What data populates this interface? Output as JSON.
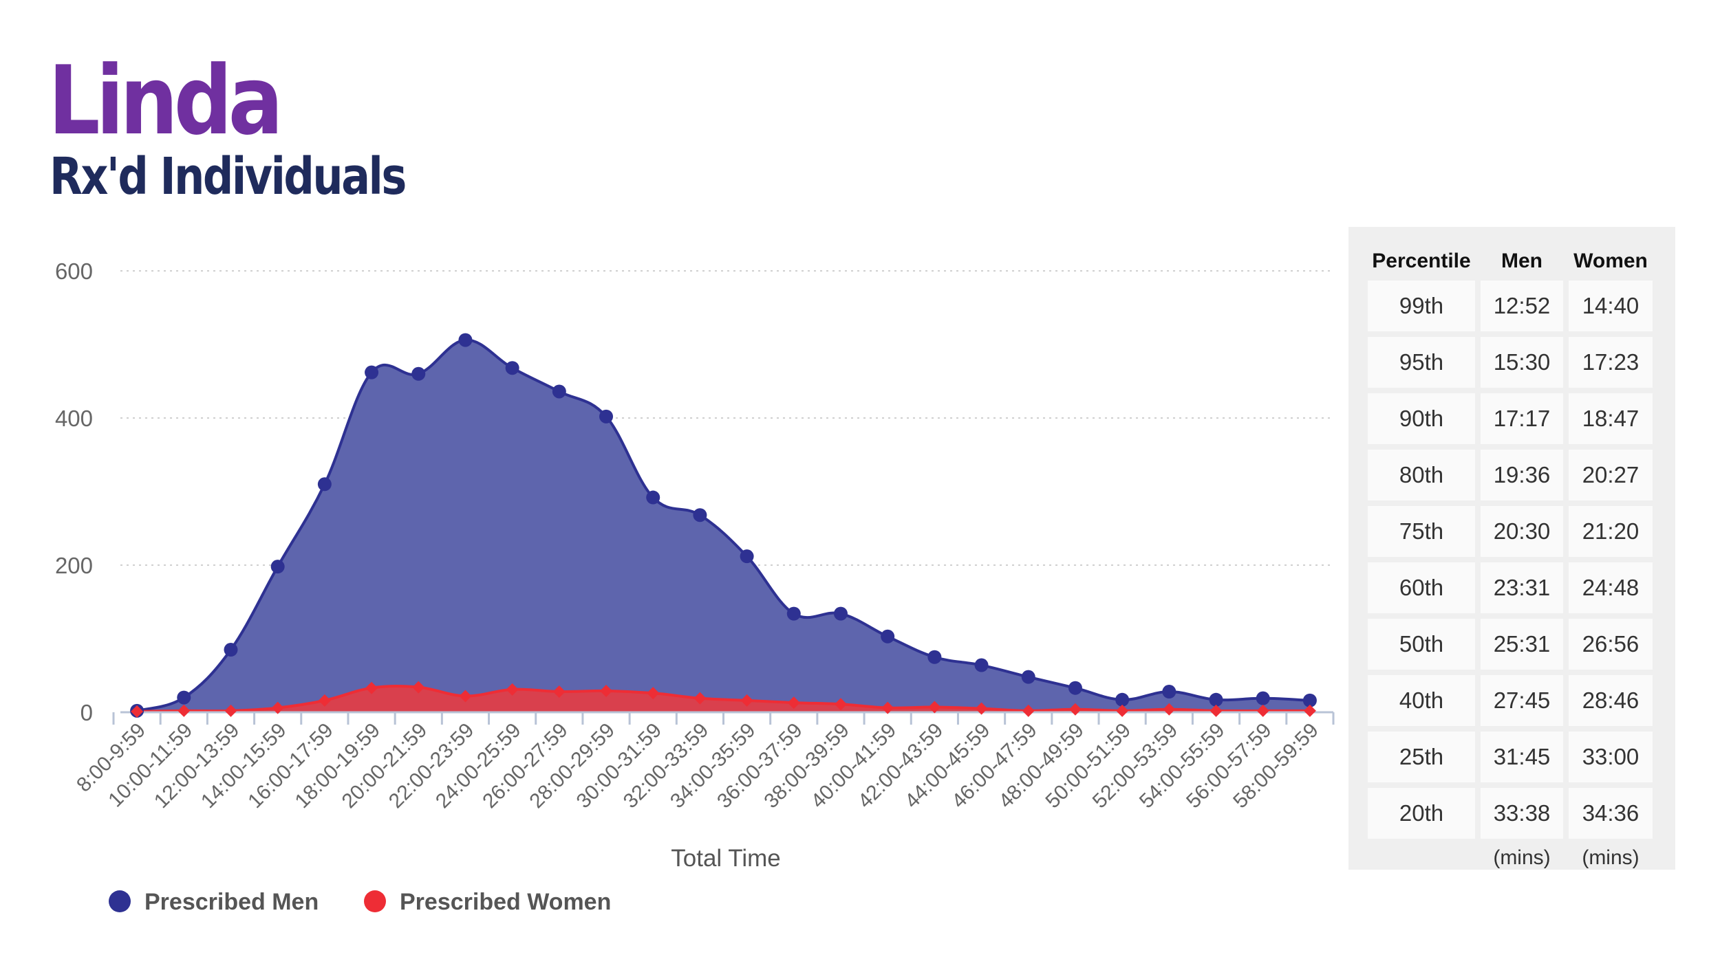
{
  "header": {
    "title": "Linda",
    "subtitle": "Rx'd Individuals"
  },
  "chart_data": {
    "type": "area",
    "categories": [
      "8:00-9:59",
      "10:00-11:59",
      "12:00-13:59",
      "14:00-15:59",
      "16:00-17:59",
      "18:00-19:59",
      "20:00-21:59",
      "22:00-23:59",
      "24:00-25:59",
      "26:00-27:59",
      "28:00-29:59",
      "30:00-31:59",
      "32:00-33:59",
      "34:00-35:59",
      "36:00-37:59",
      "38:00-39:59",
      "40:00-41:59",
      "42:00-43:59",
      "44:00-45:59",
      "46:00-47:59",
      "48:00-49:59",
      "50:00-51:59",
      "52:00-53:59",
      "54:00-55:59",
      "56:00-57:59",
      "58:00-59:59"
    ],
    "x_offsets": [
      0,
      2,
      4,
      6,
      8,
      10,
      12,
      14,
      16,
      18,
      20,
      22,
      24,
      26,
      28,
      30,
      32,
      34,
      36,
      38,
      40,
      42,
      44,
      46,
      48,
      50,
      52,
      54,
      56,
      58,
      60,
      62,
      64,
      66,
      68,
      70,
      72,
      74,
      76,
      78,
      80,
      82,
      84,
      86,
      88,
      90,
      92,
      94,
      96,
      98,
      100
    ],
    "point_offsets": [
      1,
      3,
      5,
      7,
      9,
      11,
      13,
      15,
      17,
      19,
      21,
      23,
      25,
      27,
      29,
      31,
      33,
      35,
      37,
      39,
      41,
      43,
      45,
      47,
      49,
      51,
      53,
      55,
      57,
      59,
      61,
      63,
      65,
      67,
      69,
      71,
      73,
      75,
      77,
      79,
      81,
      83,
      85,
      87,
      89,
      91,
      93,
      95,
      97,
      99
    ],
    "series": [
      {
        "name": "Prescribed Men",
        "color": "#2e3192",
        "fill": "#5e65ad",
        "values": [
          2,
          20,
          85,
          198,
          310,
          462,
          460,
          506,
          468,
          436,
          402,
          292,
          268,
          212,
          134,
          134,
          103,
          75,
          64,
          48,
          33,
          17,
          28,
          17,
          19,
          16
        ]
      },
      {
        "name": "Prescribed Women",
        "color": "#ee2d35",
        "fill": "#d9404d",
        "values": [
          1,
          2,
          2,
          6,
          16,
          33,
          34,
          22,
          31,
          28,
          29,
          26,
          19,
          16,
          13,
          11,
          6,
          7,
          5,
          2,
          4,
          2,
          4,
          2,
          2,
          2
        ]
      }
    ],
    "xlabel": "Total Time",
    "ylabel": "",
    "ylim": [
      0,
      600
    ],
    "yticks": [
      0,
      200,
      400,
      600
    ],
    "grid": true,
    "legend_placement": "bottom-left"
  },
  "percentile_table": {
    "headers": [
      "Percentile",
      "Men",
      "Women"
    ],
    "rows": [
      [
        "99th",
        "12:52",
        "14:40"
      ],
      [
        "95th",
        "15:30",
        "17:23"
      ],
      [
        "90th",
        "17:17",
        "18:47"
      ],
      [
        "80th",
        "19:36",
        "20:27"
      ],
      [
        "75th",
        "20:30",
        "21:20"
      ],
      [
        "60th",
        "23:31",
        "24:48"
      ],
      [
        "50th",
        "25:31",
        "26:56"
      ],
      [
        "40th",
        "27:45",
        "28:46"
      ],
      [
        "25th",
        "31:45",
        "33:00"
      ],
      [
        "20th",
        "33:38",
        "34:36"
      ]
    ],
    "units": [
      "",
      "(mins)",
      "(mins)"
    ]
  }
}
